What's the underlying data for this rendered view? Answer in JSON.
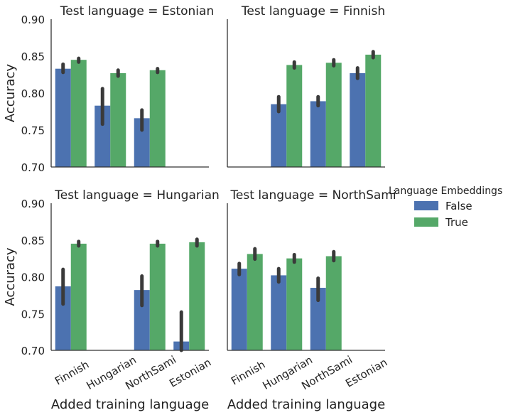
{
  "chart_data": {
    "type": "bar",
    "ylabel": "Accuracy",
    "xlabel": "Added training language",
    "ylim": [
      0.7,
      0.9
    ],
    "yticks": [
      "0.70",
      "0.75",
      "0.80",
      "0.85",
      "0.90"
    ],
    "categories": [
      "Finnish",
      "Hungarian",
      "NorthSami",
      "Estonian"
    ],
    "legend": {
      "title": "Language Embeddings",
      "placement": "right",
      "entries": [
        {
          "label": "False",
          "color": "#4c72b0"
        },
        {
          "label": "True",
          "color": "#55a868"
        }
      ]
    },
    "colors": {
      "False": "#4c72b0",
      "True": "#55a868",
      "error_bar": "#3a3a3a"
    },
    "facets": [
      {
        "title": "Test language = Estonian",
        "series": [
          {
            "name": "False",
            "values": [
              0.833,
              0.783,
              0.766,
              null
            ],
            "ci": [
              [
                0.828,
                0.839
              ],
              [
                0.758,
                0.806
              ],
              [
                0.75,
                0.777
              ],
              null
            ]
          },
          {
            "name": "True",
            "values": [
              0.845,
              0.827,
              0.831,
              null
            ],
            "ci": [
              [
                0.842,
                0.847
              ],
              [
                0.823,
                0.831
              ],
              [
                0.828,
                0.833
              ],
              null
            ]
          }
        ]
      },
      {
        "title": "Test language = Finnish",
        "series": [
          {
            "name": "False",
            "values": [
              null,
              0.785,
              0.789,
              0.827
            ],
            "ci": [
              null,
              [
                0.775,
                0.795
              ],
              [
                0.783,
                0.795
              ],
              [
                0.82,
                0.834
              ]
            ]
          },
          {
            "name": "True",
            "values": [
              null,
              0.838,
              0.841,
              0.852
            ],
            "ci": [
              null,
              [
                0.834,
                0.842
              ],
              [
                0.837,
                0.845
              ],
              [
                0.848,
                0.856
              ]
            ]
          }
        ]
      },
      {
        "title": "Test language = Hungarian",
        "series": [
          {
            "name": "False",
            "values": [
              0.787,
              null,
              0.782,
              0.712
            ],
            "ci": [
              [
                0.763,
                0.81
              ],
              null,
              [
                0.761,
                0.801
              ],
              [
                0.7,
                0.752
              ]
            ]
          },
          {
            "name": "True",
            "values": [
              0.845,
              null,
              0.845,
              0.847
            ],
            "ci": [
              [
                0.842,
                0.848
              ],
              null,
              [
                0.842,
                0.848
              ],
              [
                0.842,
                0.851
              ]
            ]
          }
        ]
      },
      {
        "title": "Test language = NorthSami",
        "series": [
          {
            "name": "False",
            "values": [
              0.811,
              0.802,
              0.785,
              null
            ],
            "ci": [
              [
                0.803,
                0.818
              ],
              [
                0.793,
                0.811
              ],
              [
                0.768,
                0.798
              ],
              null
            ]
          },
          {
            "name": "True",
            "values": [
              0.831,
              0.825,
              0.828,
              null
            ],
            "ci": [
              [
                0.824,
                0.838
              ],
              [
                0.82,
                0.83
              ],
              [
                0.822,
                0.834
              ],
              null
            ]
          }
        ]
      }
    ]
  }
}
